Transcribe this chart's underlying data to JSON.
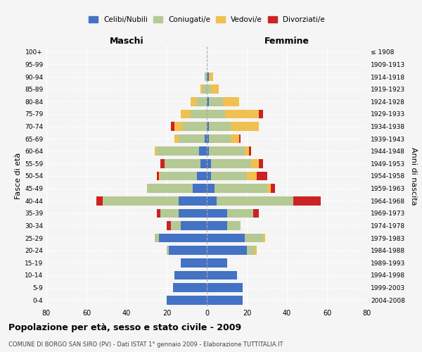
{
  "age_groups": [
    "100+",
    "95-99",
    "90-94",
    "85-89",
    "80-84",
    "75-79",
    "70-74",
    "65-69",
    "60-64",
    "55-59",
    "50-54",
    "45-49",
    "40-44",
    "35-39",
    "30-34",
    "25-29",
    "20-24",
    "15-19",
    "10-14",
    "5-9",
    "0-4"
  ],
  "birth_years": [
    "≤ 1908",
    "1909-1913",
    "1914-1918",
    "1919-1923",
    "1924-1928",
    "1929-1933",
    "1934-1938",
    "1939-1943",
    "1944-1948",
    "1949-1953",
    "1954-1958",
    "1959-1963",
    "1964-1968",
    "1969-1973",
    "1974-1978",
    "1979-1983",
    "1984-1988",
    "1989-1993",
    "1994-1998",
    "1999-2003",
    "2004-2008"
  ],
  "maschi": {
    "celibi": [
      0,
      0,
      0,
      0,
      0,
      0,
      0,
      1,
      4,
      3,
      5,
      7,
      14,
      14,
      13,
      24,
      19,
      13,
      16,
      17,
      20
    ],
    "coniugati": [
      0,
      0,
      1,
      2,
      5,
      8,
      12,
      13,
      21,
      18,
      18,
      23,
      38,
      9,
      5,
      2,
      1,
      0,
      0,
      0,
      0
    ],
    "vedovi": [
      0,
      0,
      0,
      1,
      3,
      5,
      4,
      2,
      1,
      0,
      1,
      0,
      0,
      0,
      0,
      0,
      0,
      0,
      0,
      0,
      0
    ],
    "divorziati": [
      0,
      0,
      0,
      0,
      0,
      0,
      2,
      0,
      0,
      2,
      1,
      0,
      3,
      2,
      2,
      0,
      0,
      0,
      0,
      0,
      0
    ]
  },
  "femmine": {
    "nubili": [
      0,
      0,
      1,
      0,
      1,
      0,
      1,
      1,
      1,
      2,
      2,
      4,
      5,
      10,
      10,
      19,
      20,
      10,
      15,
      18,
      18
    ],
    "coniugate": [
      0,
      0,
      0,
      2,
      7,
      9,
      11,
      11,
      18,
      20,
      18,
      26,
      38,
      13,
      7,
      9,
      4,
      0,
      0,
      0,
      0
    ],
    "vedove": [
      0,
      0,
      2,
      4,
      8,
      17,
      14,
      4,
      2,
      4,
      5,
      2,
      0,
      0,
      0,
      1,
      1,
      0,
      0,
      0,
      0
    ],
    "divorziate": [
      0,
      0,
      0,
      0,
      0,
      2,
      0,
      1,
      1,
      2,
      5,
      2,
      14,
      3,
      0,
      0,
      0,
      0,
      0,
      0,
      0
    ]
  },
  "colors": {
    "celibi_nubili": "#4472c4",
    "coniugati": "#b5c994",
    "vedovi": "#f0c050",
    "divorziati": "#cc2222"
  },
  "title": "Popolazione per età, sesso e stato civile - 2009",
  "subtitle": "COMUNE DI BORGO SAN SIRO (PV) - Dati ISTAT 1° gennaio 2009 - Elaborazione TUTTITALIA.IT",
  "xlabel_left": "Maschi",
  "xlabel_right": "Femmine",
  "ylabel_left": "Fasce di età",
  "ylabel_right": "Anni di nascita",
  "xlim": 80,
  "legend_labels": [
    "Celibi/Nubili",
    "Coniugati/e",
    "Vedovi/e",
    "Divorziati/e"
  ],
  "bg_color": "#f5f5f5"
}
